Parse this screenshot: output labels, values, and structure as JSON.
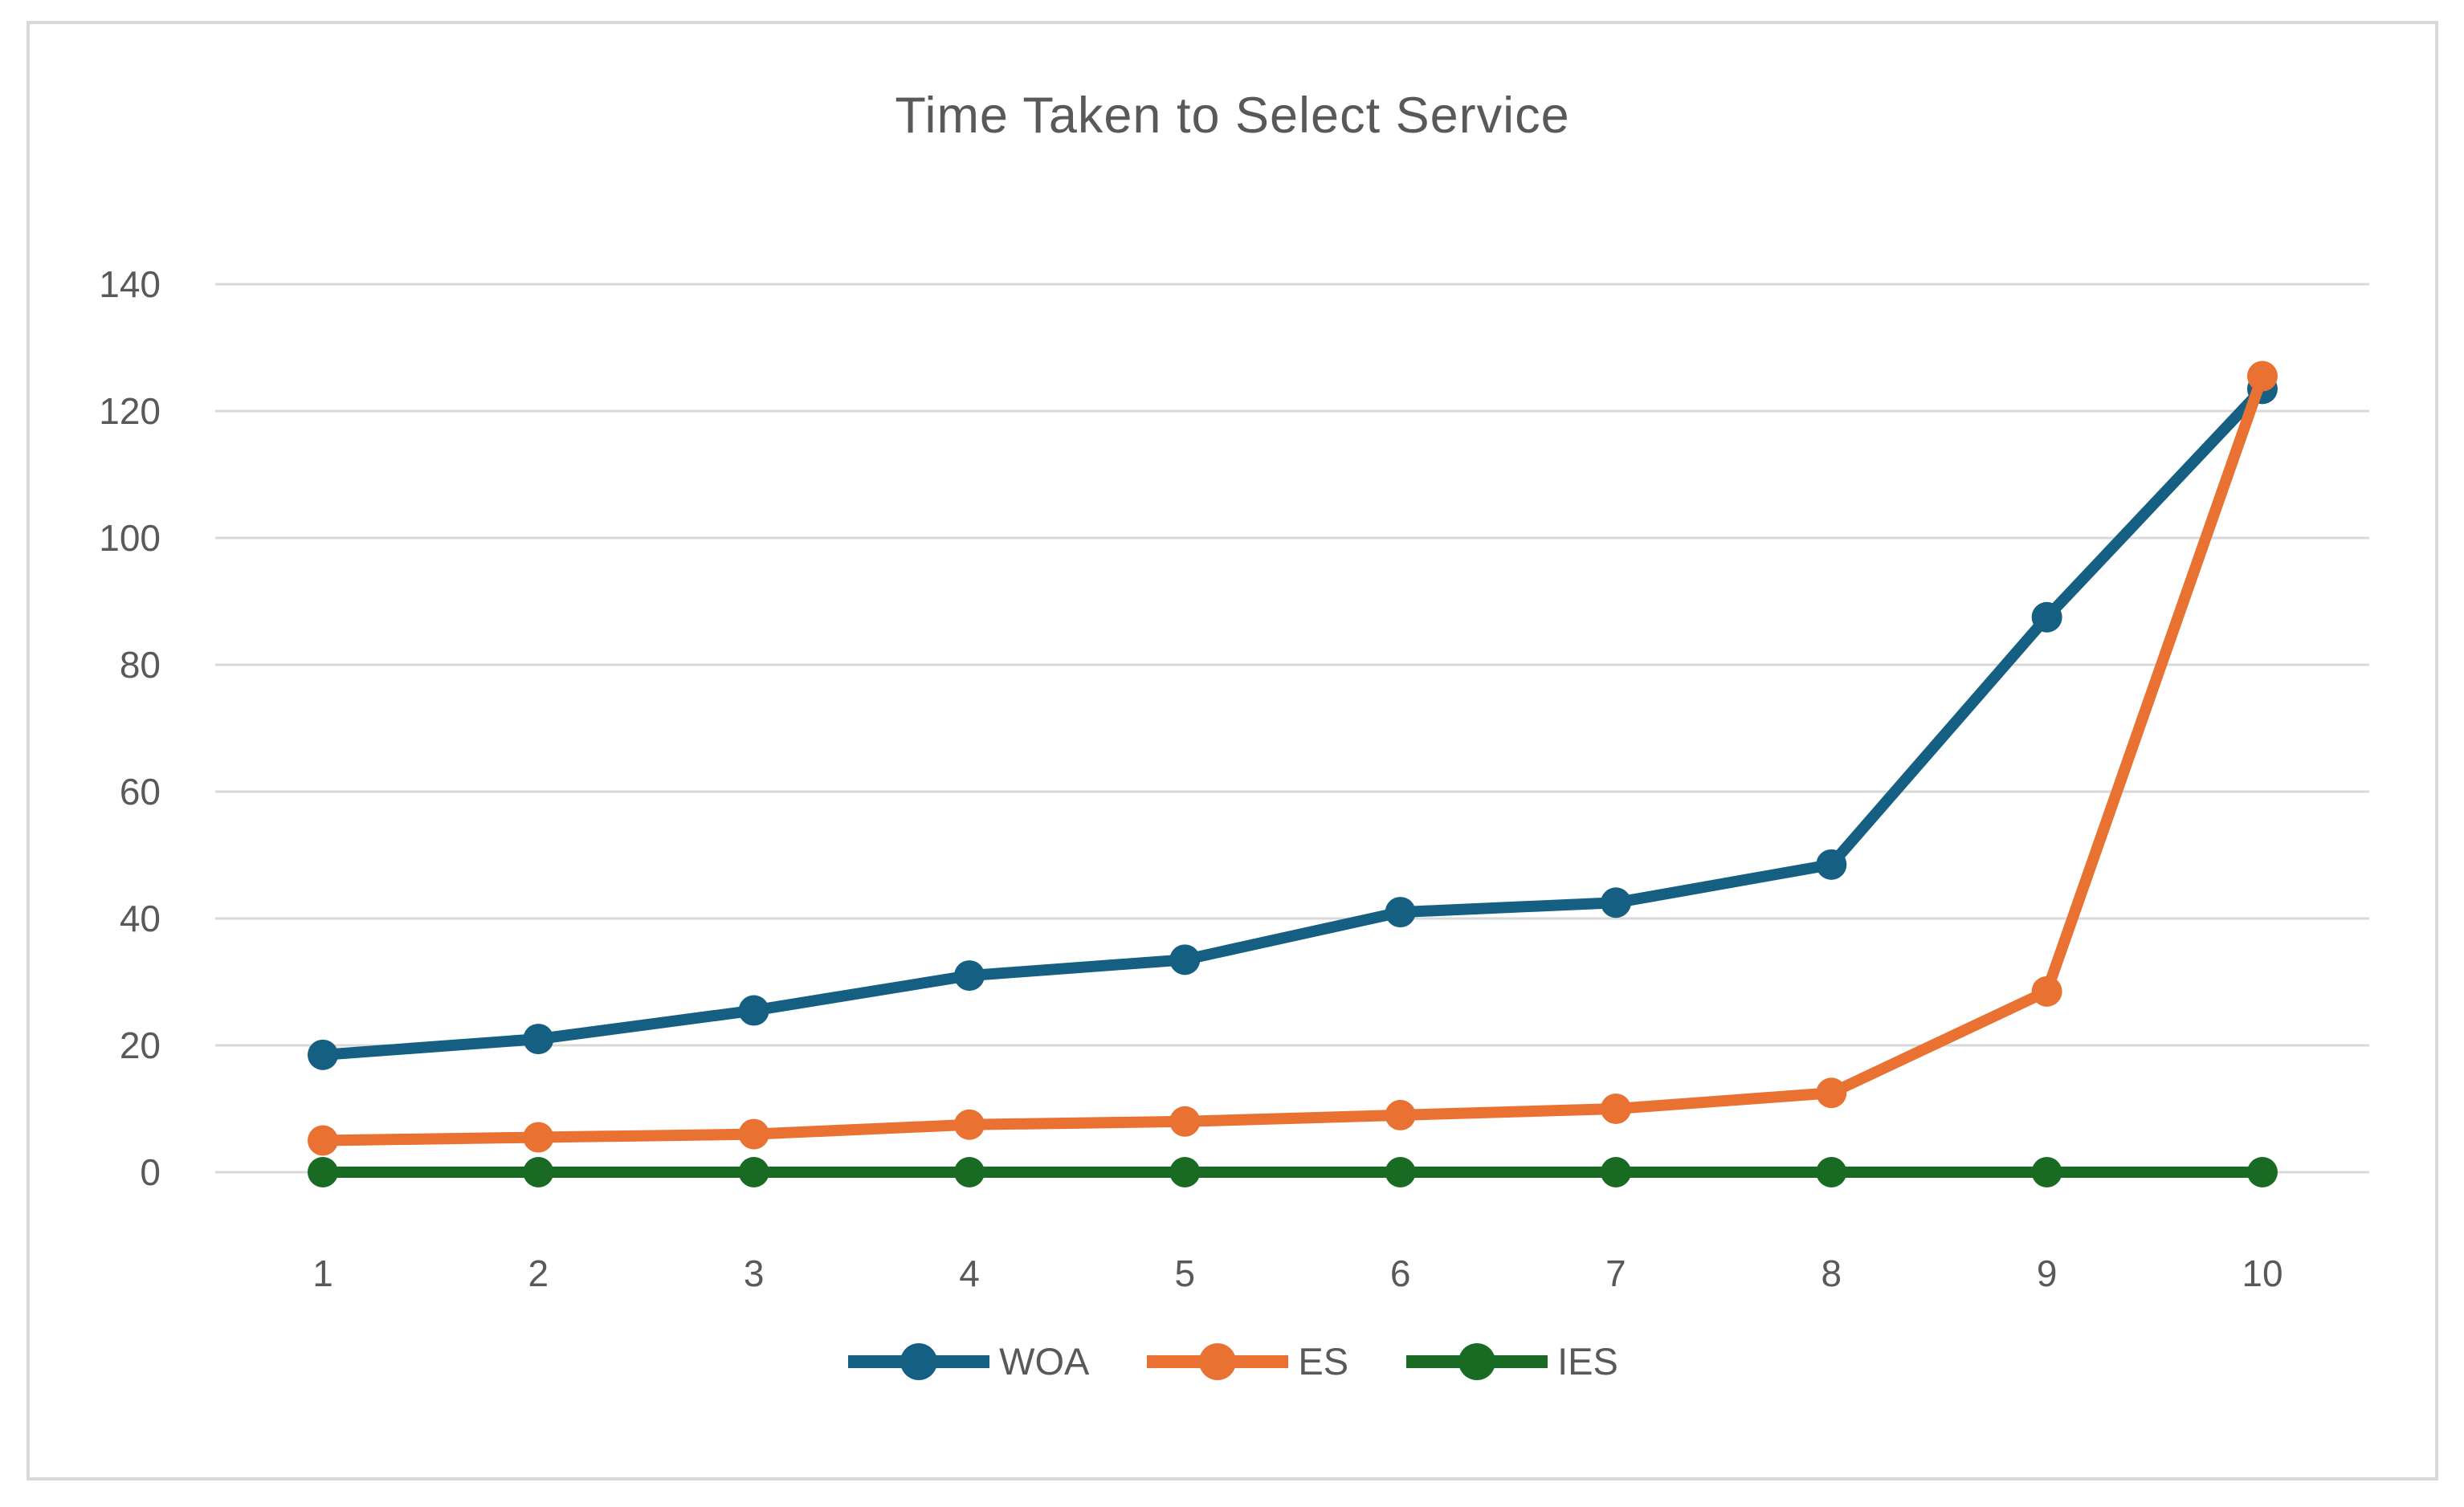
{
  "chart_data": {
    "type": "line",
    "title": "Time Taken to Select Service",
    "categories": [
      "1",
      "2",
      "3",
      "4",
      "5",
      "6",
      "7",
      "8",
      "9",
      "10"
    ],
    "series": [
      {
        "name": "WOA",
        "color": "#156082",
        "values": [
          18.5,
          21,
          25.5,
          31,
          33.5,
          41,
          42.5,
          48.5,
          87.5,
          123.5
        ]
      },
      {
        "name": "ES",
        "color": "#E97132",
        "values": [
          5,
          5.5,
          6,
          7.5,
          8,
          9,
          10,
          12.5,
          28.5,
          125.5
        ]
      },
      {
        "name": "IES",
        "color": "#196B24",
        "values": [
          0,
          0,
          0,
          0,
          0,
          0,
          0,
          0,
          0,
          0
        ]
      }
    ],
    "ylim": [
      0,
      140
    ],
    "y_ticks": [
      0,
      20,
      40,
      60,
      80,
      100,
      120,
      140
    ],
    "xlabel": "",
    "ylabel": "",
    "grid": true,
    "legend_position": "bottom"
  },
  "colors": {
    "grid": "#D9D9D9",
    "frame": "#D9D9D9",
    "axis_text": "#595959",
    "title_text": "#595959",
    "background": "#FFFFFF"
  }
}
